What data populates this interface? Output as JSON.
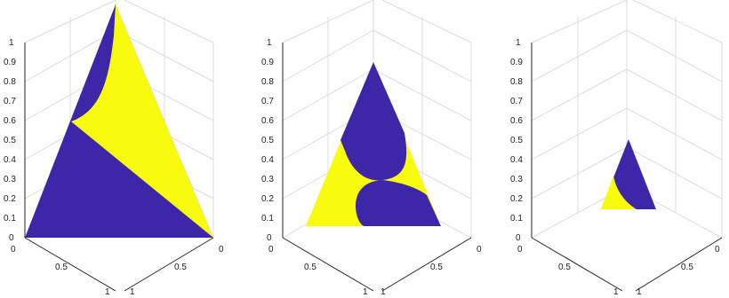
{
  "colors": {
    "region_a": "#3d26a8",
    "region_b": "#f9fb0e",
    "grid": "#dcdcdc",
    "axis": "#222222"
  },
  "chart_data": [
    {
      "type": "area",
      "view": "3d-ternary",
      "grid": true,
      "zlim": [
        0,
        1
      ],
      "zticks": [
        "0",
        "0.1",
        "0.2",
        "0.3",
        "0.4",
        "0.5",
        "0.6",
        "0.7",
        "0.8",
        "0.9",
        "1"
      ],
      "xticks": [
        "0",
        "0.5",
        "1"
      ],
      "yticks": [
        "0",
        "0.5",
        "1"
      ],
      "plane_height": 0
    },
    {
      "type": "area",
      "view": "3d-ternary",
      "grid": true,
      "zlim": [
        0,
        1
      ],
      "zticks": [
        "0",
        "0.1",
        "0.2",
        "0.3",
        "0.4",
        "0.5",
        "0.6",
        "0.7",
        "0.8",
        "0.9",
        "1"
      ],
      "xticks": [
        "0",
        "0.5",
        "1"
      ],
      "yticks": [
        "0",
        "0.5",
        "1"
      ],
      "plane_height": 0.07
    },
    {
      "type": "area",
      "view": "3d-ternary",
      "grid": true,
      "zlim": [
        0,
        1
      ],
      "zticks": [
        "0",
        "0.1",
        "0.2",
        "0.3",
        "0.4",
        "0.5",
        "0.6",
        "0.7",
        "0.8",
        "0.9",
        "1"
      ],
      "xticks": [
        "0",
        "0.5",
        "1"
      ],
      "yticks": [
        "0",
        "0.5",
        "1"
      ],
      "plane_height": 0.15
    }
  ]
}
